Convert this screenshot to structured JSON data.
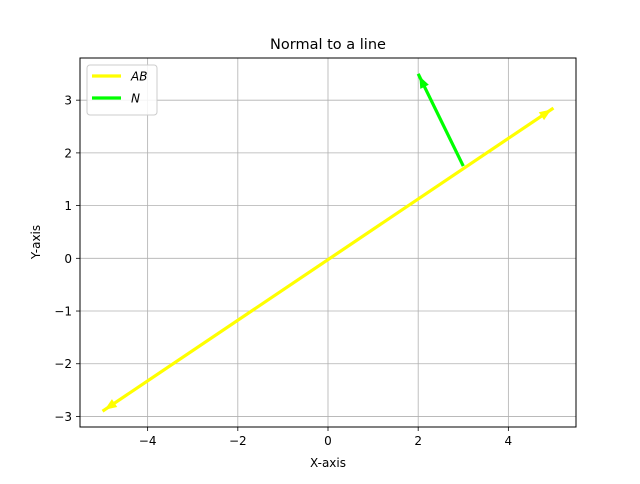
{
  "chart_data": {
    "type": "line",
    "title": "Normal to a line",
    "xlabel": "X-axis",
    "ylabel": "Y-axis",
    "xlim": [
      -5.5,
      5.5
    ],
    "ylim": [
      -3.2,
      3.8
    ],
    "grid": true,
    "legend_position": "top-left",
    "x_ticks": [
      -4,
      -2,
      0,
      2,
      4
    ],
    "x_tick_labels": [
      "−4",
      "−2",
      "0",
      "2",
      "4"
    ],
    "y_ticks": [
      -3,
      -2,
      -1,
      0,
      1,
      2,
      3
    ],
    "y_tick_labels": [
      "−3",
      "−2",
      "−1",
      "0",
      "1",
      "2",
      "3"
    ],
    "series": [
      {
        "name": "AB",
        "color": "#ffff00",
        "x": [
          -5,
          5
        ],
        "y": [
          -2.9,
          2.85
        ],
        "arrows": "both"
      },
      {
        "name": "N",
        "color": "#00ff00",
        "x": [
          3,
          2
        ],
        "y": [
          1.75,
          3.5
        ],
        "arrows": "end"
      }
    ]
  }
}
